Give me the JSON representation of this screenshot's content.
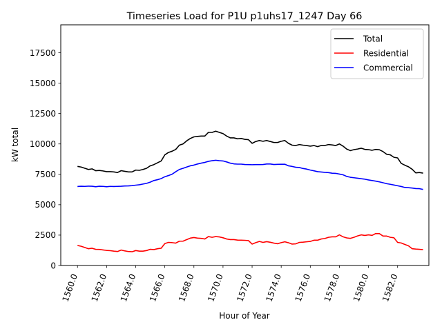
{
  "chart_data": {
    "type": "line",
    "title": "Timeseries Load for P1U p1uhs17_1247  Day 66",
    "xlabel": "Hour of Year",
    "ylabel": "kW total",
    "xlim": [
      1558.85,
      1584.15
    ],
    "ylim": [
      0,
      19800
    ],
    "xticks": [
      1560,
      1562,
      1564,
      1566,
      1568,
      1570,
      1572,
      1574,
      1576,
      1578,
      1580,
      1582
    ],
    "xtick_labels": [
      "1560.0",
      "1562.0",
      "1564.0",
      "1566.0",
      "1568.0",
      "1570.0",
      "1572.0",
      "1574.0",
      "1576.0",
      "1578.0",
      "1580.0",
      "1582.0"
    ],
    "yticks": [
      0,
      2500,
      5000,
      7500,
      10000,
      12500,
      15000,
      17500
    ],
    "ytick_labels": [
      "0",
      "2500",
      "5000",
      "7500",
      "10000",
      "12500",
      "15000",
      "17500"
    ],
    "legend_position": "upper-right",
    "x": [
      1560.0,
      1560.25,
      1560.5,
      1560.75,
      1561.0,
      1561.25,
      1561.5,
      1561.75,
      1562.0,
      1562.25,
      1562.5,
      1562.75,
      1563.0,
      1563.25,
      1563.5,
      1563.75,
      1564.0,
      1564.25,
      1564.5,
      1564.75,
      1565.0,
      1565.25,
      1565.5,
      1565.75,
      1566.0,
      1566.25,
      1566.5,
      1566.75,
      1567.0,
      1567.25,
      1567.5,
      1567.75,
      1568.0,
      1568.25,
      1568.5,
      1568.75,
      1569.0,
      1569.25,
      1569.5,
      1569.75,
      1570.0,
      1570.25,
      1570.5,
      1570.75,
      1571.0,
      1571.25,
      1571.5,
      1571.75,
      1572.0,
      1572.25,
      1572.5,
      1572.75,
      1573.0,
      1573.25,
      1573.5,
      1573.75,
      1574.0,
      1574.25,
      1574.5,
      1574.75,
      1575.0,
      1575.25,
      1575.5,
      1575.75,
      1576.0,
      1576.25,
      1576.5,
      1576.75,
      1577.0,
      1577.25,
      1577.5,
      1577.75,
      1578.0,
      1578.25,
      1578.5,
      1578.75,
      1579.0,
      1579.25,
      1579.5,
      1579.75,
      1580.0,
      1580.25,
      1580.5,
      1580.75,
      1581.0,
      1581.25,
      1581.5,
      1581.75,
      1582.0,
      1582.25,
      1582.5,
      1582.75,
      1583.0,
      1583.25,
      1583.5,
      1583.75
    ],
    "series": [
      {
        "name": "Total",
        "color": "#000000",
        "values": [
          8150,
          8100,
          8000,
          7900,
          7950,
          7800,
          7820,
          7780,
          7720,
          7720,
          7700,
          7650,
          7800,
          7750,
          7700,
          7700,
          7850,
          7830,
          7900,
          8000,
          8200,
          8300,
          8450,
          8600,
          9100,
          9300,
          9400,
          9550,
          9900,
          10000,
          10250,
          10450,
          10580,
          10620,
          10650,
          10650,
          10950,
          10950,
          11050,
          10950,
          10850,
          10650,
          10500,
          10500,
          10420,
          10450,
          10380,
          10350,
          10050,
          10200,
          10280,
          10220,
          10280,
          10200,
          10120,
          10120,
          10220,
          10280,
          10050,
          9900,
          9870,
          9950,
          9900,
          9870,
          9820,
          9870,
          9780,
          9870,
          9870,
          9950,
          9920,
          9870,
          10000,
          9820,
          9580,
          9450,
          9530,
          9580,
          9650,
          9550,
          9530,
          9480,
          9550,
          9520,
          9370,
          9150,
          9100,
          8900,
          8850,
          8400,
          8250,
          8120,
          7920,
          7620,
          7650,
          7600
        ]
      },
      {
        "name": "Residential",
        "color": "#ff0000",
        "values": [
          1650,
          1580,
          1480,
          1380,
          1420,
          1330,
          1320,
          1280,
          1240,
          1220,
          1180,
          1150,
          1270,
          1200,
          1150,
          1130,
          1230,
          1180,
          1180,
          1230,
          1330,
          1310,
          1380,
          1420,
          1800,
          1900,
          1880,
          1840,
          2000,
          2000,
          2130,
          2250,
          2300,
          2250,
          2230,
          2180,
          2380,
          2320,
          2380,
          2350,
          2280,
          2180,
          2130,
          2130,
          2090,
          2080,
          2070,
          2050,
          1760,
          1880,
          1980,
          1900,
          1960,
          1910,
          1840,
          1790,
          1880,
          1950,
          1870,
          1760,
          1780,
          1900,
          1920,
          1950,
          1980,
          2080,
          2080,
          2180,
          2220,
          2320,
          2360,
          2360,
          2520,
          2360,
          2270,
          2230,
          2320,
          2430,
          2520,
          2470,
          2520,
          2480,
          2630,
          2620,
          2420,
          2420,
          2320,
          2280,
          1900,
          1850,
          1730,
          1620,
          1380,
          1350,
          1330,
          1300
        ]
      },
      {
        "name": "Commercial",
        "color": "#0000ff",
        "values": [
          6500,
          6520,
          6510,
          6530,
          6520,
          6480,
          6520,
          6510,
          6480,
          6510,
          6500,
          6510,
          6520,
          6540,
          6550,
          6570,
          6610,
          6640,
          6700,
          6760,
          6860,
          6990,
          7060,
          7150,
          7300,
          7400,
          7510,
          7710,
          7900,
          7990,
          8100,
          8200,
          8260,
          8350,
          8420,
          8480,
          8570,
          8620,
          8660,
          8620,
          8600,
          8520,
          8420,
          8360,
          8340,
          8340,
          8310,
          8300,
          8290,
          8300,
          8300,
          8310,
          8350,
          8350,
          8310,
          8320,
          8330,
          8330,
          8200,
          8150,
          8080,
          8060,
          7980,
          7930,
          7850,
          7790,
          7720,
          7690,
          7660,
          7640,
          7590,
          7580,
          7520,
          7460,
          7330,
          7260,
          7220,
          7180,
          7140,
          7100,
          7040,
          6990,
          6940,
          6880,
          6810,
          6730,
          6680,
          6620,
          6560,
          6500,
          6420,
          6400,
          6370,
          6330,
          6320,
          6260
        ]
      }
    ]
  }
}
